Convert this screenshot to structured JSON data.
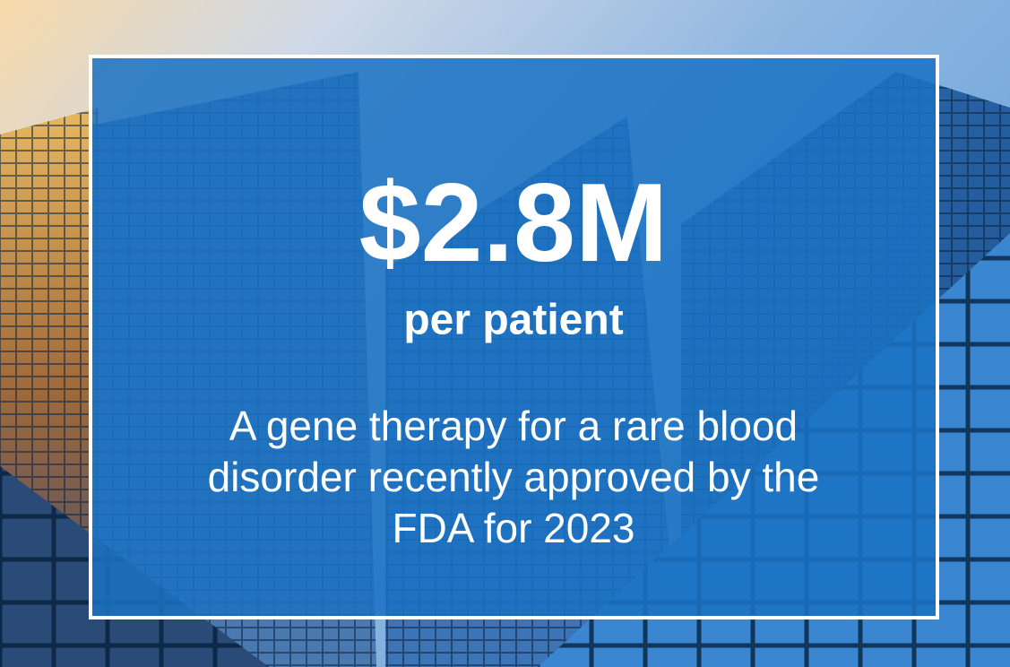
{
  "headline": {
    "value": "$2.8M",
    "unit": "per patient"
  },
  "description": [
    "A gene therapy for a rare blood",
    "disorder recently approved by the",
    "FDA for 2023"
  ]
}
